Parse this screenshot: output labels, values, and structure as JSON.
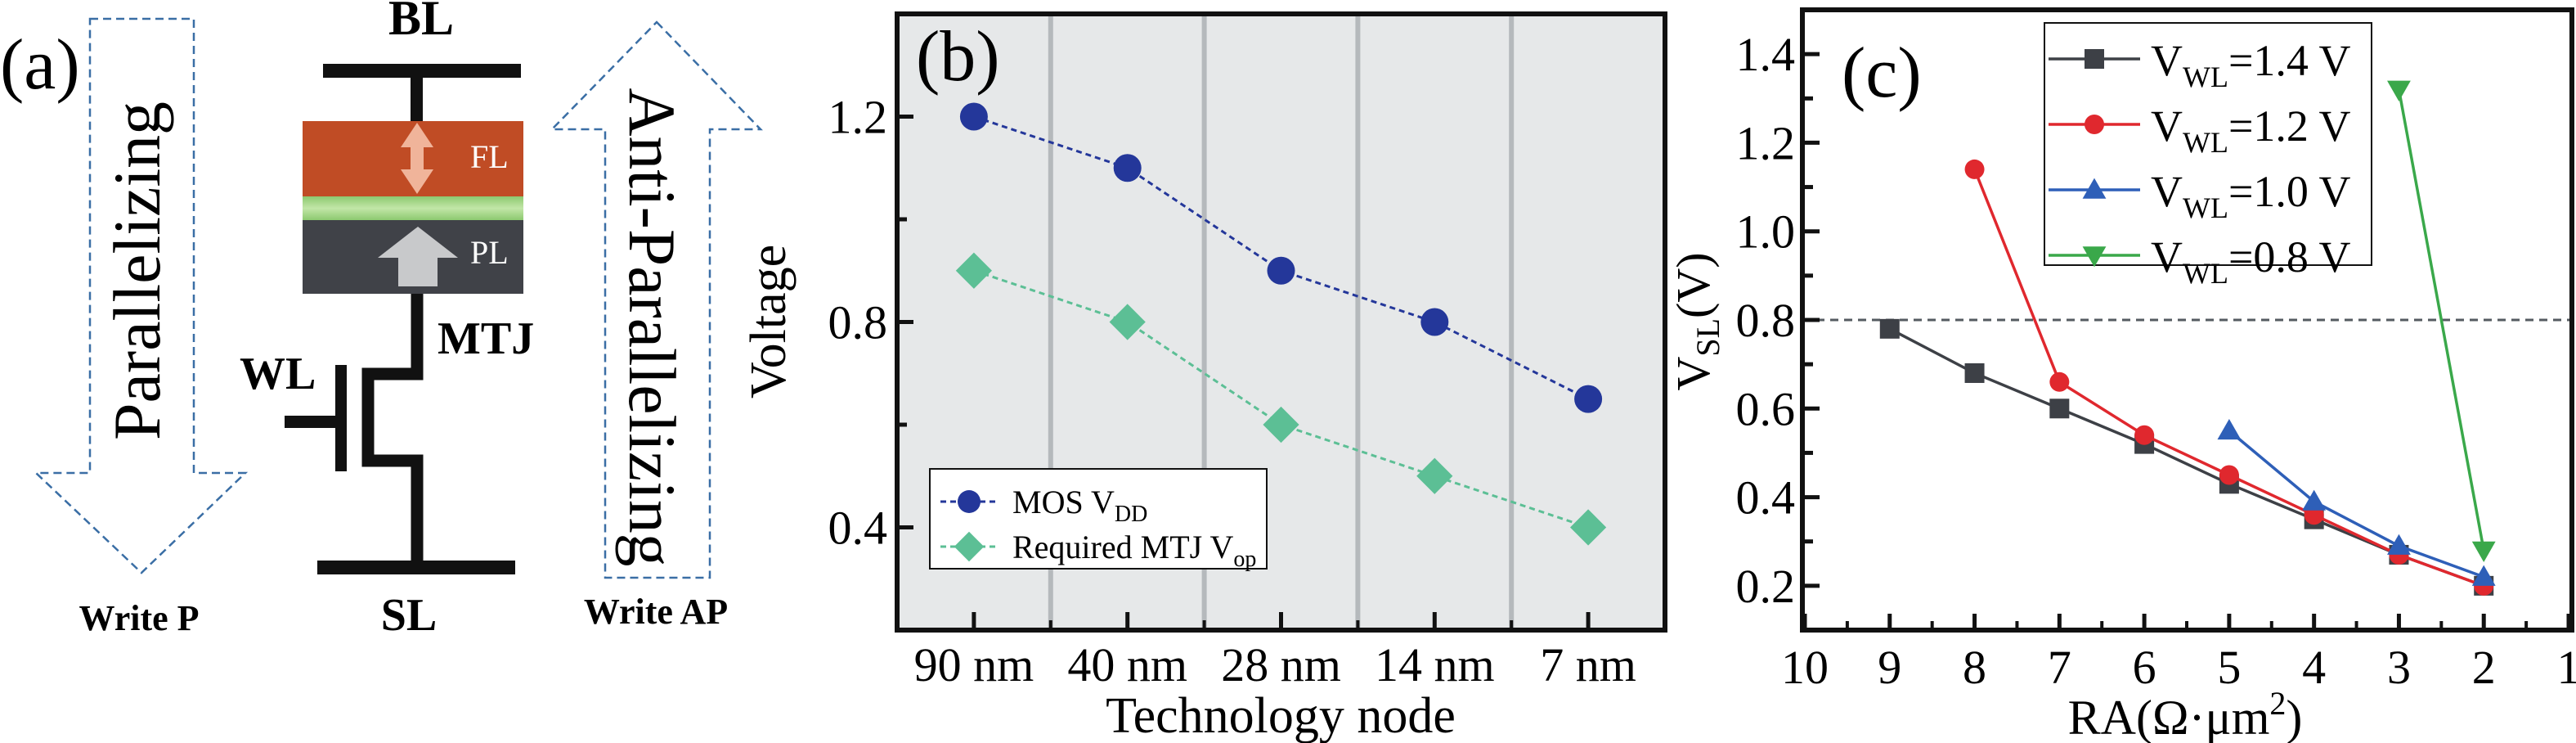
{
  "panel_a": {
    "label": "(a)",
    "bl": "BL",
    "sl": "SL",
    "wl": "WL",
    "mtj": "MTJ",
    "fl": "FL",
    "pl": "PL",
    "parallelizing": "Parallelizing",
    "anti_parallelizing": "Anti-Parallelizing",
    "write_p": "Write P",
    "write_ap": "Write AP",
    "colors": {
      "fl": "#c04c25",
      "barrier": "#9fd283",
      "pl": "#404248",
      "arrow": "#3a6ea5"
    }
  },
  "chart_data": [
    {
      "type": "line",
      "panel_label": "(b)",
      "xlabel": "Technology node",
      "ylabel": "Voltage",
      "categories": [
        "90 nm",
        "40 nm",
        "28 nm",
        "14 nm",
        "7 nm"
      ],
      "ylim": [
        0.2,
        1.4
      ],
      "yticks": [
        0.4,
        0.8,
        1.2
      ],
      "ytick_labels": [
        "0.4",
        "0.8",
        "1.2"
      ],
      "grid": "vertical separators between categories",
      "background": "#e6e8e9",
      "legend_position": "bottom-left",
      "series": [
        {
          "name": "MOS V",
          "name_sub": "DD",
          "values": [
            1.2,
            1.1,
            0.9,
            0.8,
            0.65
          ],
          "color": "#24379a",
          "marker": "circle",
          "line": "dashed"
        },
        {
          "name": "Required MTJ V",
          "name_sub": "op",
          "values": [
            0.9,
            0.8,
            0.6,
            0.5,
            0.4
          ],
          "color": "#5cbf95",
          "marker": "diamond",
          "line": "dashed"
        }
      ]
    },
    {
      "type": "line",
      "panel_label": "(c)",
      "xlabel": "RA(Ω·μm",
      "xlabel_sup": "2",
      "xlabel_end": ")",
      "ylabel": "V",
      "ylabel_sub": "SL",
      "ylabel_end": "(V)",
      "xlim": [
        10,
        1
      ],
      "x_reversed": true,
      "xticks": [
        10,
        9,
        8,
        7,
        6,
        5,
        4,
        3,
        2,
        1
      ],
      "ylim": [
        0.1,
        1.5
      ],
      "yticks": [
        0.2,
        0.4,
        0.6,
        0.8,
        1.0,
        1.2,
        1.4
      ],
      "ytick_labels": [
        "0.2",
        "0.4",
        "0.6",
        "0.8",
        "1.0",
        "1.2",
        "1.4"
      ],
      "reference_line": {
        "y": 0.8,
        "style": "dashed",
        "color": "#555b61"
      },
      "legend_position": "top-center",
      "series": [
        {
          "name": "V",
          "name_sub": "WL",
          "name_end": "=1.4 V",
          "color": "#3d4046",
          "marker": "square",
          "x": [
            9,
            8,
            7,
            6,
            5,
            4,
            3,
            2
          ],
          "y": [
            0.78,
            0.68,
            0.6,
            0.52,
            0.43,
            0.35,
            0.27,
            0.2
          ]
        },
        {
          "name": "V",
          "name_sub": "WL",
          "name_end": "=1.2 V",
          "color": "#e0282e",
          "marker": "circle",
          "x": [
            8,
            7,
            6,
            5,
            4,
            3,
            2
          ],
          "y": [
            1.14,
            0.66,
            0.54,
            0.45,
            0.36,
            0.27,
            0.2
          ]
        },
        {
          "name": "V",
          "name_sub": "WL",
          "name_end": "=1.0 V",
          "color": "#2e5fb8",
          "marker": "triangle-up",
          "x": [
            5,
            4,
            3,
            2
          ],
          "y": [
            0.55,
            0.39,
            0.29,
            0.22
          ]
        },
        {
          "name": "V",
          "name_sub": "WL",
          "name_end": "=0.8 V",
          "color": "#3aa84a",
          "marker": "triangle-down",
          "x": [
            3,
            2
          ],
          "y": [
            1.32,
            0.28
          ]
        }
      ]
    }
  ]
}
